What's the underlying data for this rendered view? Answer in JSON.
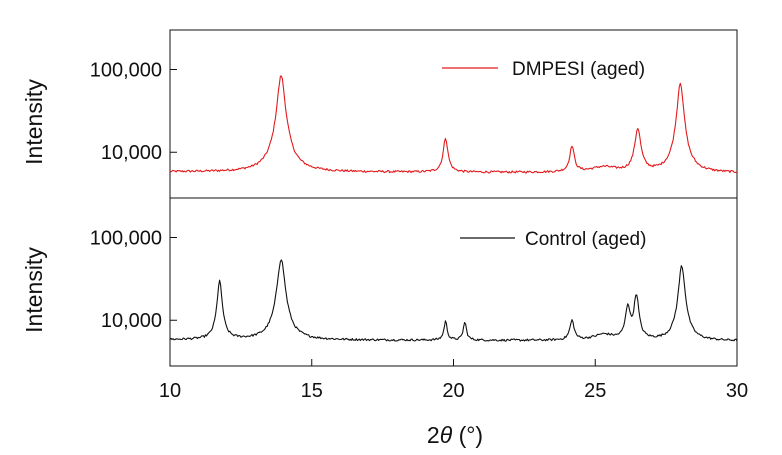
{
  "chart_data": {
    "type": "line",
    "xlabel_prefix": "2",
    "xlabel_symbol": "θ",
    "xlabel_suffix": " (°)",
    "xlim": [
      10,
      30
    ],
    "xticks": [
      10,
      15,
      20,
      25,
      30
    ],
    "xtick_labels": [
      "10",
      "15",
      "20",
      "25",
      "30"
    ],
    "log_y": true,
    "grid": false,
    "legend_position": "top-right",
    "panels": [
      {
        "ylabel": "Intensity",
        "ylim": [
          2800,
          300000
        ],
        "yticks": [
          10000,
          100000
        ],
        "ytick_labels": [
          "10,000",
          "100,000"
        ],
        "series": [
          {
            "name": "DMPESI (aged)",
            "color": "#e31a1c",
            "baseline": 5800,
            "peaks": [
              {
                "x": 13.92,
                "y": 85000,
                "w": 0.12
              },
              {
                "x": 19.72,
                "y": 15000,
                "w": 0.08
              },
              {
                "x": 24.18,
                "y": 12000,
                "w": 0.08
              },
              {
                "x": 25.3,
                "y": 6700,
                "w": 0.5
              },
              {
                "x": 26.5,
                "y": 19500,
                "w": 0.1
              },
              {
                "x": 28.0,
                "y": 70000,
                "w": 0.1
              }
            ]
          }
        ]
      },
      {
        "ylabel": "Intensity",
        "ylim": [
          2800,
          300000
        ],
        "yticks": [
          10000,
          100000
        ],
        "ytick_labels": [
          "10,000",
          "100,000"
        ],
        "series": [
          {
            "name": "Control (aged)",
            "color": "#111111",
            "baseline": 5800,
            "peaks": [
              {
                "x": 11.75,
                "y": 30000,
                "w": 0.08
              },
              {
                "x": 13.92,
                "y": 55000,
                "w": 0.12
              },
              {
                "x": 19.72,
                "y": 9800,
                "w": 0.06
              },
              {
                "x": 20.4,
                "y": 9500,
                "w": 0.06
              },
              {
                "x": 24.18,
                "y": 10000,
                "w": 0.08
              },
              {
                "x": 25.3,
                "y": 6800,
                "w": 0.4
              },
              {
                "x": 26.15,
                "y": 15000,
                "w": 0.08
              },
              {
                "x": 26.45,
                "y": 20500,
                "w": 0.08
              },
              {
                "x": 28.05,
                "y": 46000,
                "w": 0.1
              }
            ]
          }
        ]
      }
    ]
  }
}
